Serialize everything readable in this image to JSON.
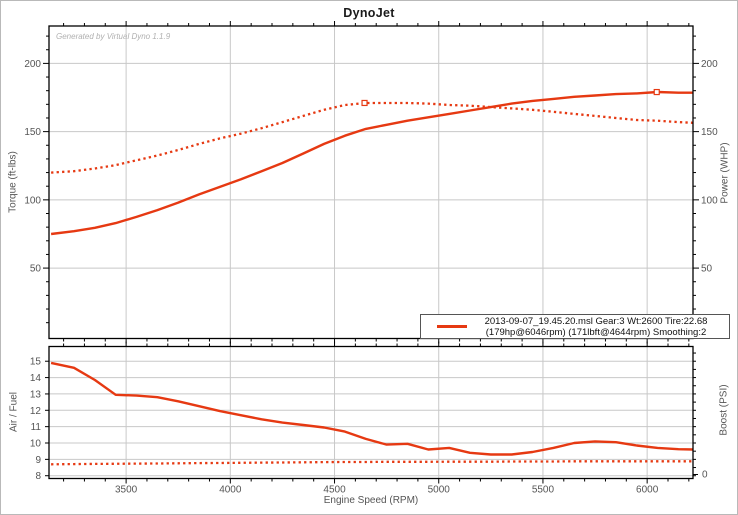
{
  "window": {
    "title": "DynoJet",
    "watermark": "Generated by Virtual Dyno 1.1.9"
  },
  "colors": {
    "curve": "#e63912",
    "grid": "#c8c8c8",
    "axis": "#000000",
    "tick_label": "#555555",
    "axis_title": "#555555",
    "watermark": "#b0b0b0",
    "legend_border": "#555555",
    "marker_fill": "#ffffff"
  },
  "legend": {
    "line1": "2013-09-07_19.45.20.msl Gear:3 Wt:2600 Tire:22.68",
    "line2": "(179hp@6046rpm) (171lbft@4644rpm) Smoothing:2"
  },
  "chart_data": [
    {
      "type": "line",
      "title": "DynoJet",
      "xlabel": "Engine Speed (RPM)",
      "ylabel_left": "Torque (ft-lbs)",
      "ylabel_right": "Power (WHP)",
      "xlim": [
        3130,
        6220
      ],
      "ylim": [
        -1.6,
        227.4
      ],
      "xticks": [
        3500,
        4000,
        4500,
        5000,
        5500,
        6000
      ],
      "yticks": [
        50,
        100,
        150,
        200
      ],
      "x_minor_step": 100,
      "y_minor_step": 10,
      "grid": true,
      "show_x_tick_labels": false,
      "show_right_tick_labels": true,
      "x": [
        3140,
        3250,
        3350,
        3450,
        3550,
        3650,
        3750,
        3850,
        3950,
        4050,
        4150,
        4250,
        4350,
        4450,
        4550,
        4650,
        4750,
        4850,
        4950,
        5050,
        5150,
        5250,
        5350,
        5450,
        5550,
        5650,
        5750,
        5850,
        5950,
        6050,
        6150,
        6220
      ],
      "series": [
        {
          "name": "Power (WHP)",
          "line_style": "solid",
          "values": [
            75,
            77,
            79.5,
            83,
            87.5,
            92.5,
            98,
            104,
            109.5,
            115,
            121,
            127,
            134,
            141,
            147,
            152,
            155,
            158,
            160.5,
            163,
            165.5,
            168,
            170.5,
            172.5,
            174,
            175.5,
            176.5,
            177.5,
            178,
            179,
            178.5,
            178.5
          ],
          "peak_marker": {
            "rpm": 6046,
            "value": 179,
            "label": "179hp@6046rpm"
          }
        },
        {
          "name": "Torque (ft-lbs)",
          "line_style": "dotted",
          "values": [
            120,
            121,
            123,
            125.5,
            129,
            132.5,
            136.5,
            141,
            145,
            148.5,
            152.5,
            157,
            161.5,
            166,
            169.5,
            171,
            171,
            171,
            170.5,
            169.5,
            169,
            168,
            167,
            166,
            164.5,
            163,
            161.5,
            160,
            158.5,
            158,
            157,
            156.5
          ],
          "peak_marker": {
            "rpm": 4644,
            "value": 171,
            "label": "171lbft@4644rpm"
          }
        }
      ]
    },
    {
      "type": "line",
      "xlabel": "Engine Speed (RPM)",
      "ylabel_left": "Air / Fuel",
      "ylabel_right": "Boost (PSI)",
      "xlim": [
        3130,
        6220
      ],
      "ylim": [
        7.83,
        15.9
      ],
      "xticks": [
        3500,
        4000,
        4500,
        5000,
        5500,
        6000
      ],
      "yticks": [
        8,
        9,
        10,
        11,
        12,
        13,
        14,
        15
      ],
      "x_minor_step": 100,
      "grid": true,
      "show_x_tick_labels": true,
      "show_right_tick_labels": false,
      "boost_axis_visible_label": "0",
      "x": [
        3140,
        3250,
        3350,
        3450,
        3550,
        3650,
        3750,
        3850,
        3950,
        4050,
        4150,
        4250,
        4350,
        4450,
        4550,
        4650,
        4750,
        4850,
        4950,
        5050,
        5150,
        5250,
        5350,
        5450,
        5550,
        5650,
        5750,
        5850,
        5950,
        6050,
        6150,
        6220
      ],
      "series": [
        {
          "name": "Air / Fuel",
          "line_style": "solid",
          "values": [
            14.9,
            14.6,
            13.85,
            12.95,
            12.9,
            12.8,
            12.55,
            12.25,
            11.95,
            11.7,
            11.45,
            11.25,
            11.1,
            10.95,
            10.7,
            10.25,
            9.9,
            9.95,
            9.6,
            9.7,
            9.4,
            9.3,
            9.3,
            9.45,
            9.7,
            10.0,
            10.1,
            10.05,
            9.85,
            9.7,
            9.62,
            9.6
          ]
        },
        {
          "name": "Boost (PSI)",
          "line_style": "dotted",
          "axis": "plotted-on-left-scale",
          "values": [
            8.7,
            8.71,
            8.72,
            8.73,
            8.74,
            8.75,
            8.76,
            8.77,
            8.78,
            8.79,
            8.8,
            8.81,
            8.82,
            8.83,
            8.84,
            8.84,
            8.85,
            8.85,
            8.85,
            8.86,
            8.86,
            8.86,
            8.87,
            8.87,
            8.87,
            8.88,
            8.88,
            8.88,
            8.88,
            8.88,
            8.88,
            8.88
          ]
        }
      ]
    }
  ]
}
